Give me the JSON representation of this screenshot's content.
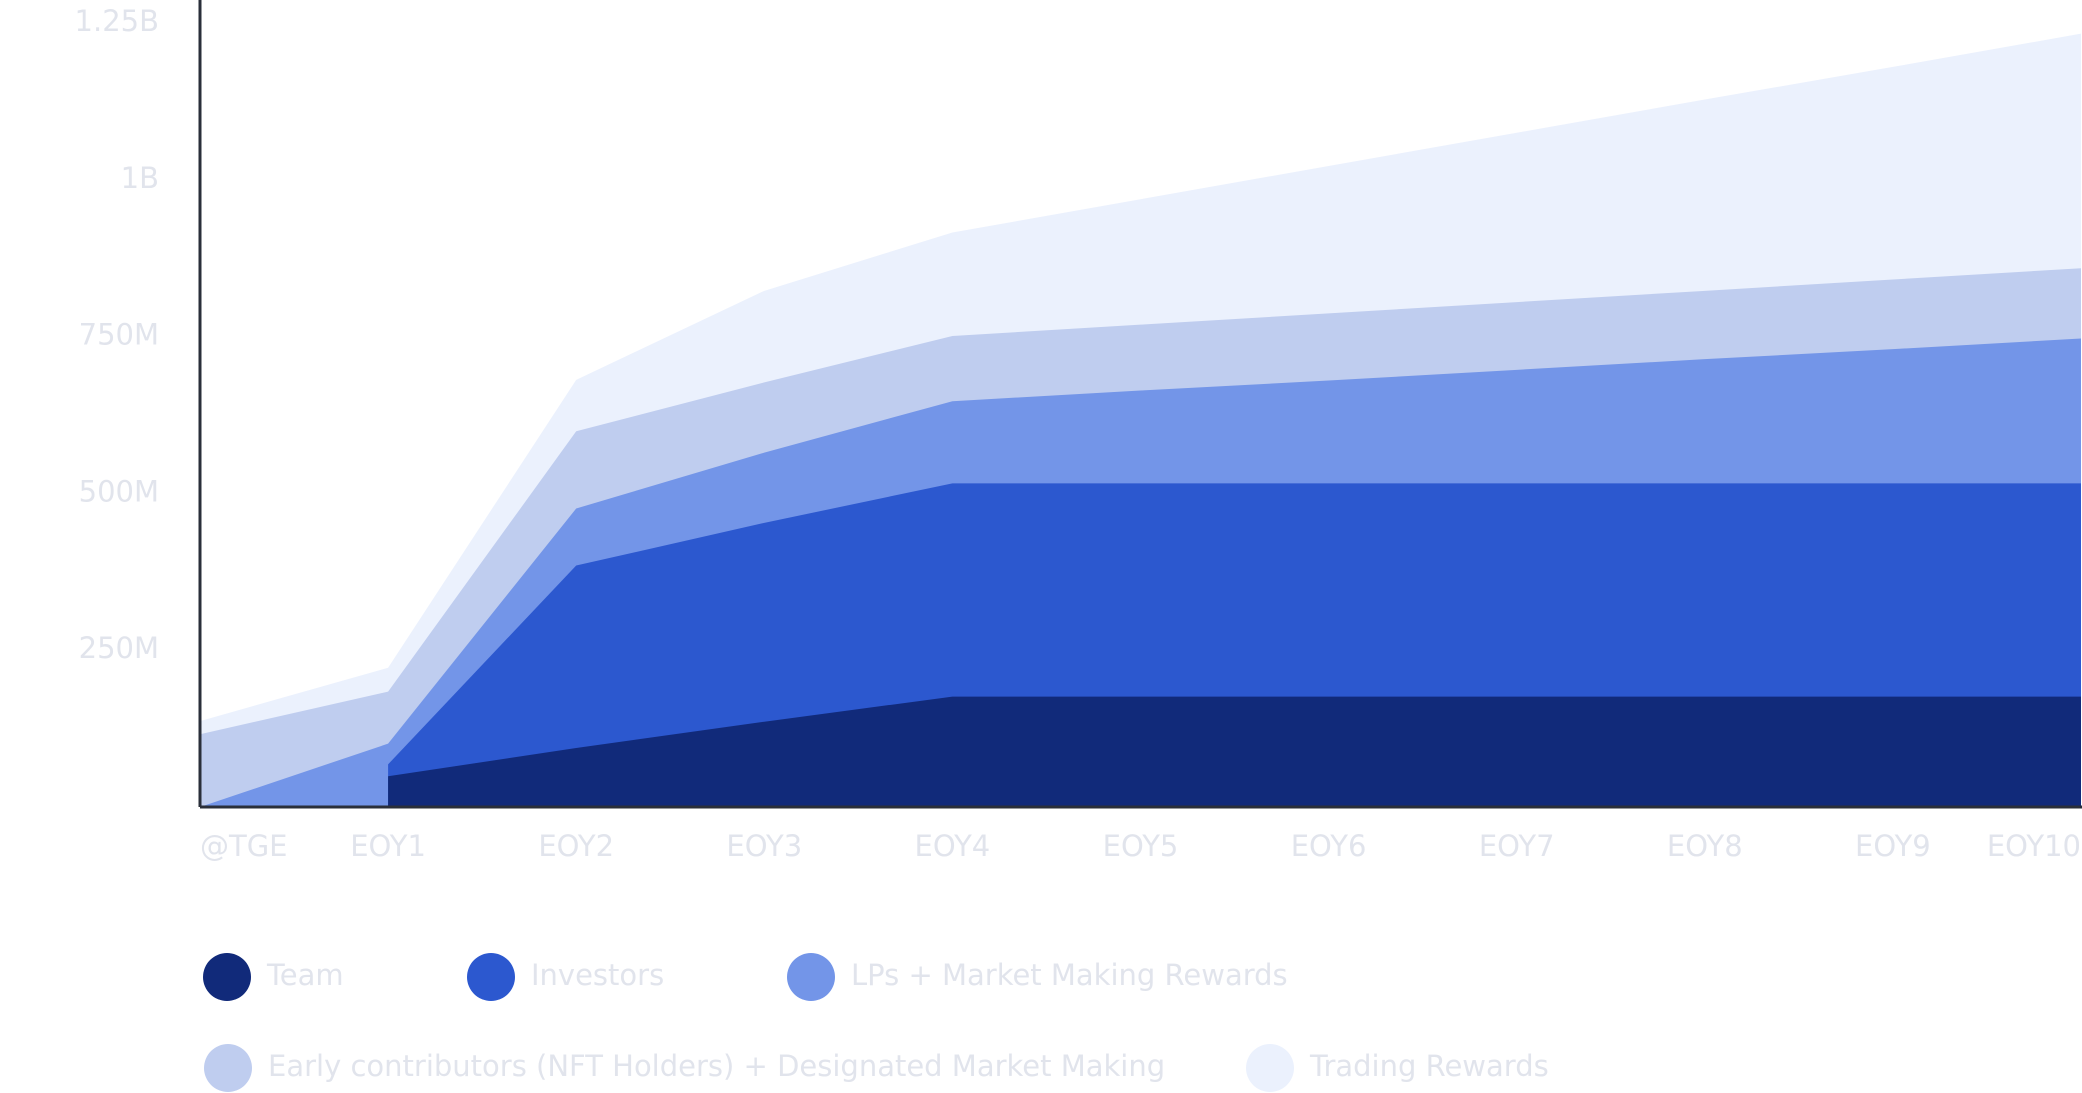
{
  "chart_data": {
    "type": "area",
    "categories": [
      "@TGE",
      "EOY1",
      "EOY2",
      "EOY3",
      "EOY4",
      "EOY5",
      "EOY6",
      "EOY7",
      "EOY8",
      "EOY9",
      "EOY10"
    ],
    "series": [
      {
        "name": "Team",
        "color": "#112a7a",
        "values": [
          null,
          49,
          94,
          136,
          176,
          176,
          176,
          176,
          176,
          176,
          176
        ]
      },
      {
        "name": "Investors",
        "color": "#2c58cf",
        "values": [
          null,
          19,
          291,
          317,
          340,
          340,
          340,
          340,
          340,
          340,
          340
        ]
      },
      {
        "name": "LPs + Market Making Rewards",
        "color": "#7395e8",
        "values": [
          0,
          33,
          91,
          112,
          131,
          148,
          164,
          181,
          198,
          214,
          231
        ]
      },
      {
        "name": "Early contributors (NFT Holders) + Designated Market Making",
        "color": "#bfcdef",
        "values": [
          116,
          83,
          123,
          112,
          104,
          105,
          107,
          108,
          109,
          111,
          112
        ]
      },
      {
        "name": "Trading Rewards",
        "color": "#ebf1fd",
        "values": [
          21,
          38,
          82,
          146,
          165,
          200,
          235,
          270,
          305,
          339,
          374
        ]
      }
    ],
    "stacked": true,
    "ylim": [
      0,
      1250
    ],
    "yticks": [
      {
        "value": 250,
        "label": "250M"
      },
      {
        "value": 500,
        "label": "500M"
      },
      {
        "value": 750,
        "label": "750M"
      },
      {
        "value": 1000,
        "label": "1B"
      },
      {
        "value": 1250,
        "label": "1.25B"
      }
    ]
  }
}
